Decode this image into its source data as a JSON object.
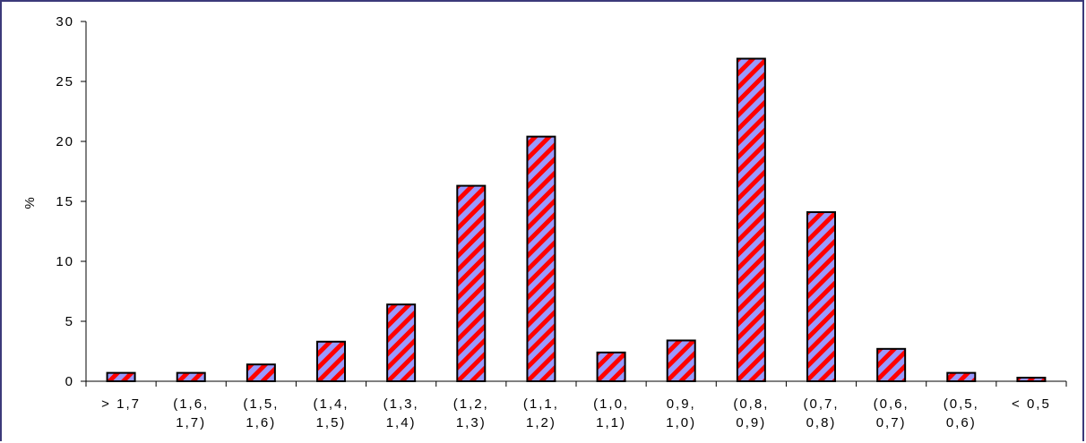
{
  "chart_data": {
    "type": "bar",
    "categories": [
      [
        "> 1,7"
      ],
      [
        "(1,6,",
        "1,7)"
      ],
      [
        "(1,5,",
        "1,6)"
      ],
      [
        "(1,4,",
        "1,5)"
      ],
      [
        "(1,3,",
        "1,4)"
      ],
      [
        "(1,2,",
        "1,3)"
      ],
      [
        "(1,1,",
        "1,2)"
      ],
      [
        "(1,0,",
        "1,1)"
      ],
      [
        "0,9,",
        "1,0)"
      ],
      [
        "(0,8,",
        "0,9)"
      ],
      [
        "(0,7,",
        "0,8)"
      ],
      [
        "(0,6,",
        "0,7)"
      ],
      [
        "(0,5,",
        "0,6)"
      ],
      [
        "< 0,5"
      ]
    ],
    "values": [
      0.7,
      0.7,
      1.4,
      3.3,
      6.4,
      16.3,
      20.4,
      2.4,
      3.4,
      26.9,
      14.1,
      2.7,
      0.7,
      0.3
    ],
    "title": "",
    "xlabel": "",
    "ylabel": "%",
    "ylim": [
      0,
      30
    ],
    "yticks": [
      "0",
      "5",
      "10",
      "15",
      "20",
      "25",
      "30"
    ],
    "grid": false,
    "colors": {
      "stripe_a": "#9999ff",
      "stripe_b": "#ff0000",
      "outline": "#000000",
      "frame": "#3c3a7a"
    }
  }
}
